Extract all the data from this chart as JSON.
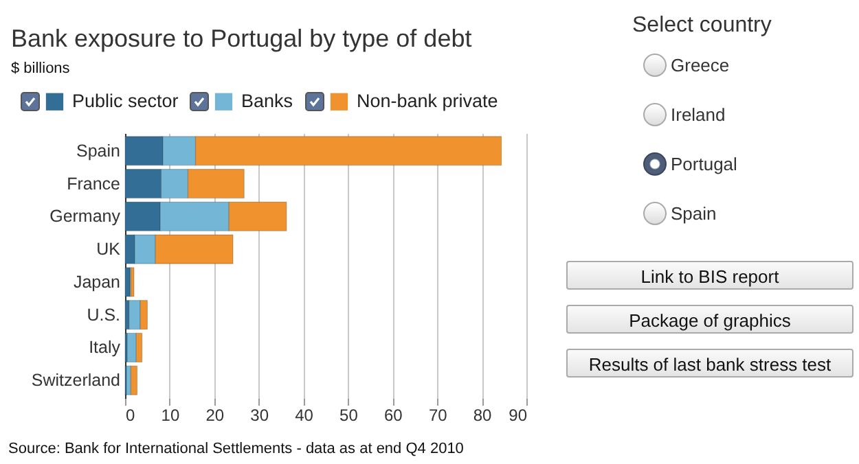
{
  "chart_data": {
    "type": "bar",
    "orientation": "horizontal",
    "stacked": true,
    "title": "Bank exposure to Portugal by type of debt",
    "subtitle": "$ billions",
    "categories": [
      "Spain",
      "France",
      "Germany",
      "UK",
      "Japan",
      "U.S.",
      "Italy",
      "Switzerland"
    ],
    "series": [
      {
        "name": "Public sector",
        "color": "#336e96",
        "values": [
          8.5,
          8.1,
          7.9,
          2.2,
          1.1,
          0.9,
          0.5,
          0.3
        ]
      },
      {
        "name": "Banks",
        "color": "#74b6d6",
        "values": [
          7.3,
          6.0,
          15.4,
          4.6,
          0.2,
          2.5,
          2.0,
          1.0
        ]
      },
      {
        "name": "Non-bank private",
        "color": "#f0922e",
        "values": [
          68.6,
          12.6,
          12.9,
          17.4,
          0.7,
          1.6,
          1.3,
          1.4
        ]
      }
    ],
    "xlim": [
      0,
      90
    ],
    "xticks": [
      0,
      10,
      20,
      30,
      40,
      50,
      60,
      70,
      80,
      90
    ],
    "grid": "x",
    "legend": "top",
    "annotations": [
      "Source: Bank for International Settlements - data as at end Q4 2010",
      "Select country",
      "Greece",
      "Ireland",
      "Portugal",
      "Spain",
      "Link to BIS report",
      "Package of graphics",
      "Results of last bank stress test"
    ]
  }
}
